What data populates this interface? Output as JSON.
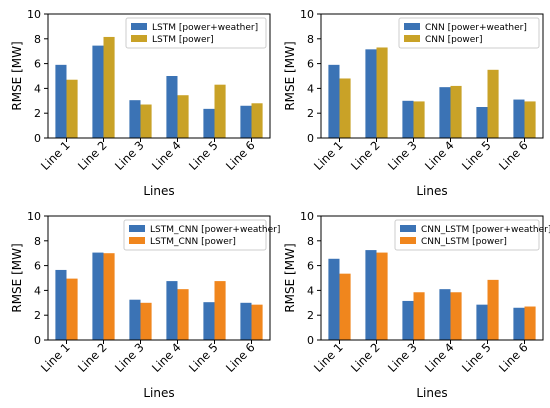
{
  "chart_data": [
    {
      "type": "bar",
      "categories": [
        "Line 1",
        "Line 2",
        "Line 3",
        "Line 4",
        "Line 5",
        "Line 6"
      ],
      "series": [
        {
          "name": "LSTM [power+weather]",
          "values": [
            5.9,
            7.45,
            3.05,
            5.0,
            2.35,
            2.6
          ],
          "color": "#3b73b5"
        },
        {
          "name": "LSTM [power]",
          "values": [
            4.7,
            8.15,
            2.7,
            3.45,
            4.3,
            2.8
          ],
          "color": "#c9a227"
        }
      ],
      "xlabel": "Lines",
      "ylabel": "RMSE [MW]",
      "ylim": [
        0,
        10
      ],
      "yticks": [
        0,
        2,
        4,
        6,
        8,
        10
      ],
      "legend": "top-right",
      "grid": false
    },
    {
      "type": "bar",
      "categories": [
        "Line 1",
        "Line 2",
        "Line 3",
        "Line 4",
        "Line 5",
        "Line 6"
      ],
      "series": [
        {
          "name": "CNN [power+weather]",
          "values": [
            5.9,
            7.15,
            3.0,
            4.1,
            2.5,
            3.1
          ],
          "color": "#3b73b5"
        },
        {
          "name": "CNN [power]",
          "values": [
            4.8,
            7.3,
            2.95,
            4.2,
            5.5,
            2.95
          ],
          "color": "#c9a227"
        }
      ],
      "xlabel": "Lines",
      "ylabel": "RMSE [MW]",
      "ylim": [
        0,
        10
      ],
      "yticks": [
        0,
        2,
        4,
        6,
        8,
        10
      ],
      "legend": "top-right",
      "grid": false
    },
    {
      "type": "bar",
      "categories": [
        "Line 1",
        "Line 2",
        "Line 3",
        "Line 4",
        "Line 5",
        "Line 6"
      ],
      "series": [
        {
          "name": "LSTM_CNN [power+weather]",
          "values": [
            5.65,
            7.05,
            3.25,
            4.75,
            3.05,
            3.0
          ],
          "color": "#3b73b5"
        },
        {
          "name": "LSTM_CNN [power]",
          "values": [
            4.95,
            7.0,
            3.0,
            4.1,
            4.75,
            2.85
          ],
          "color": "#f0861d"
        }
      ],
      "xlabel": "Lines",
      "ylabel": "RMSE [MW]",
      "ylim": [
        0,
        10
      ],
      "yticks": [
        0,
        2,
        4,
        6,
        8,
        10
      ],
      "legend": "top-right",
      "grid": false
    },
    {
      "type": "bar",
      "categories": [
        "Line 1",
        "Line 2",
        "Line 3",
        "Line 4",
        "Line 5",
        "Line 6"
      ],
      "series": [
        {
          "name": "CNN_LSTM [power+weather]",
          "values": [
            6.55,
            7.25,
            3.15,
            4.1,
            2.85,
            2.6
          ],
          "color": "#3b73b5"
        },
        {
          "name": "CNN_LSTM [power]",
          "values": [
            5.35,
            7.05,
            3.85,
            3.85,
            4.85,
            2.7
          ],
          "color": "#f0861d"
        }
      ],
      "xlabel": "Lines",
      "ylabel": "RMSE [MW]",
      "ylim": [
        0,
        10
      ],
      "yticks": [
        0,
        2,
        4,
        6,
        8,
        10
      ],
      "legend": "top-right",
      "grid": false
    }
  ]
}
